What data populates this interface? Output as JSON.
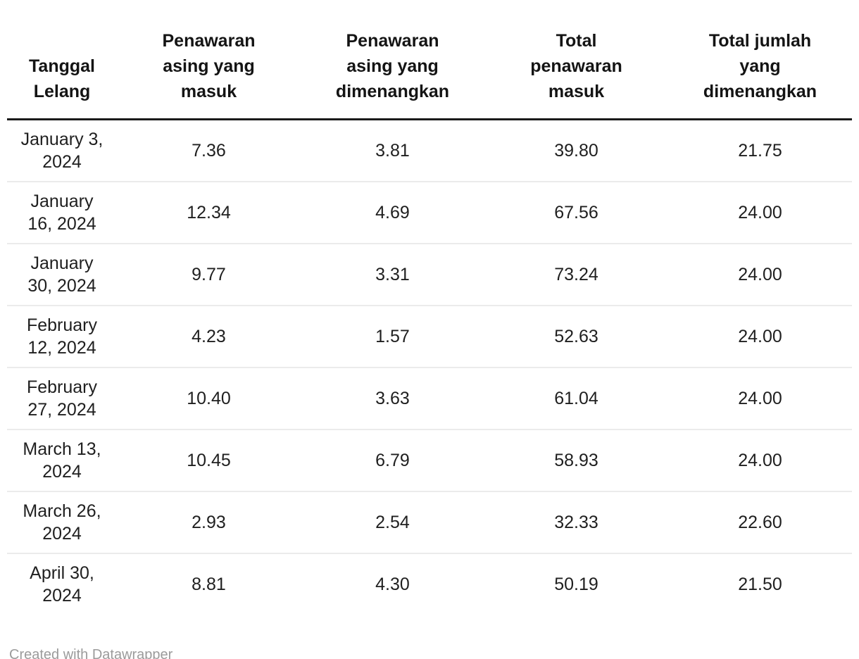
{
  "chart_data": {
    "type": "table",
    "columns": [
      "Tanggal Lelang",
      "Penawaran asing yang masuk",
      "Penawaran asing yang dimenangkan",
      "Total penawaran masuk",
      "Total jumlah yang dimenangkan"
    ],
    "rows": [
      [
        "January 3, 2024",
        "7.36",
        "3.81",
        "39.80",
        "21.75"
      ],
      [
        "January 16, 2024",
        "12.34",
        "4.69",
        "67.56",
        "24.00"
      ],
      [
        "January 30, 2024",
        "9.77",
        "3.31",
        "73.24",
        "24.00"
      ],
      [
        "February 12, 2024",
        "4.23",
        "1.57",
        "52.63",
        "24.00"
      ],
      [
        "February 27, 2024",
        "10.40",
        "3.63",
        "61.04",
        "24.00"
      ],
      [
        "March 13, 2024",
        "10.45",
        "6.79",
        "58.93",
        "24.00"
      ],
      [
        "March 26, 2024",
        "2.93",
        "2.54",
        "32.33",
        "22.60"
      ],
      [
        "April 30, 2024",
        "8.81",
        "4.30",
        "50.19",
        "21.50"
      ]
    ],
    "layout_hints": {
      "alignment": "center",
      "header_border": "thick-bottom",
      "row_separators": true,
      "alternating_rows": false
    }
  },
  "footer": {
    "credit": "Created with Datawrapper"
  },
  "colors": {
    "page_bg": "#ffffff",
    "header_text": "#141414",
    "body_text": "#1f1f1f",
    "header_border": "#1a1a1a",
    "row_separator": "#ebebeb",
    "credit_text": "#9b9b9b"
  }
}
